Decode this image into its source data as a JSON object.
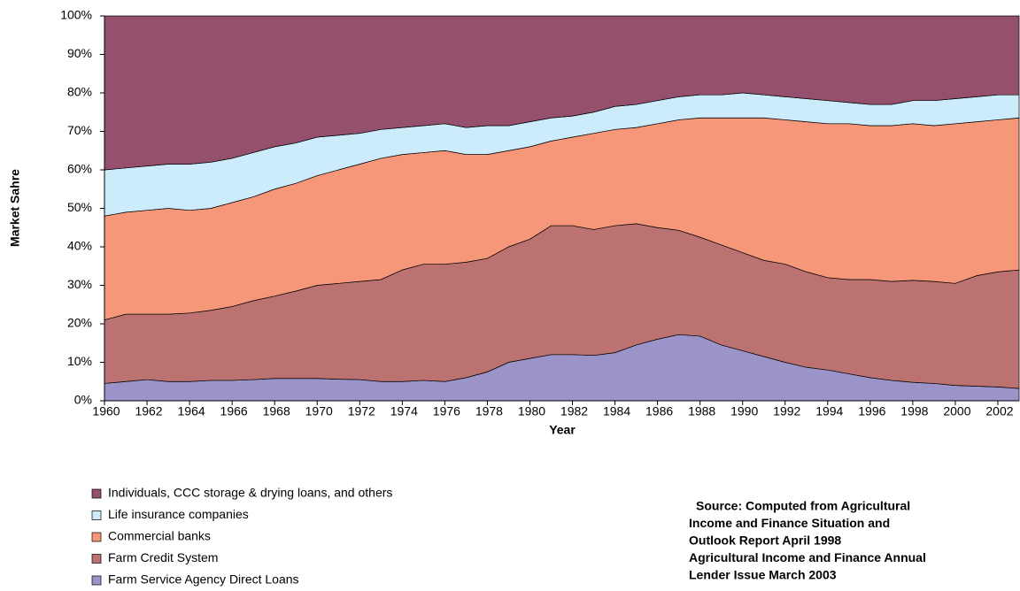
{
  "chart_data": {
    "type": "stacked_area",
    "x_label": "Year",
    "y_label": "Market Sahre",
    "x": [
      1960,
      1961,
      1962,
      1963,
      1964,
      1965,
      1966,
      1967,
      1968,
      1969,
      1970,
      1971,
      1972,
      1973,
      1974,
      1975,
      1976,
      1977,
      1978,
      1979,
      1980,
      1981,
      1982,
      1983,
      1984,
      1985,
      1986,
      1987,
      1988,
      1989,
      1990,
      1991,
      1992,
      1993,
      1994,
      1995,
      1996,
      1997,
      1998,
      1999,
      2000,
      2001,
      2002,
      2003
    ],
    "xlim": [
      1960,
      2003
    ],
    "xticks": [
      1960,
      1962,
      1964,
      1966,
      1968,
      1970,
      1972,
      1974,
      1976,
      1978,
      1980,
      1982,
      1984,
      1986,
      1988,
      1990,
      1992,
      1994,
      1996,
      1998,
      2000,
      2002
    ],
    "ylim": [
      0,
      100
    ],
    "yticks": [
      {
        "value": 0,
        "label": "0%"
      },
      {
        "value": 10,
        "label": "10%"
      },
      {
        "value": 20,
        "label": "20%"
      },
      {
        "value": 30,
        "label": "30%"
      },
      {
        "value": 40,
        "label": "40%"
      },
      {
        "value": 50,
        "label": "50%"
      },
      {
        "value": 60,
        "label": "60%"
      },
      {
        "value": 70,
        "label": "70%"
      },
      {
        "value": 80,
        "label": "80%"
      },
      {
        "value": 90,
        "label": "90%"
      },
      {
        "value": 100,
        "label": "100%"
      }
    ],
    "grid": false,
    "legend": "bottom-left",
    "series": [
      {
        "name": "Individuals, CCC storage & drying loans, and others",
        "color": "#94506c",
        "values": [
          40,
          39.5,
          39,
          38.5,
          38.5,
          38,
          37,
          35.5,
          34,
          33,
          31.5,
          31,
          30.5,
          29.5,
          29,
          28.5,
          28,
          29,
          28.5,
          28.5,
          27.5,
          26.5,
          26,
          25,
          23.5,
          23,
          22,
          21,
          20.5,
          20.5,
          20,
          20.5,
          21,
          21.5,
          22,
          22.5,
          23,
          23,
          22,
          22,
          21.5,
          21,
          20.5,
          20.5
        ]
      },
      {
        "name": "Life insurance companies",
        "color": "#ccecfc",
        "values": [
          12,
          11.5,
          11.5,
          11.5,
          12,
          12,
          11.5,
          11.5,
          11,
          10.5,
          10,
          9,
          8,
          7.5,
          7,
          7,
          7,
          7,
          7.5,
          6.5,
          6.5,
          6,
          5.5,
          5.5,
          6,
          6,
          6,
          6,
          6,
          6,
          6.5,
          6,
          6,
          6,
          6,
          5.5,
          5.5,
          5.5,
          6,
          6.5,
          6.5,
          6.5,
          6.5,
          6
        ]
      },
      {
        "name": "Commercial banks",
        "color": "#f6977a",
        "values": [
          27,
          26.5,
          27,
          27.5,
          26.7,
          26.5,
          27,
          27,
          27.8,
          28,
          28.5,
          29.5,
          30.5,
          31.5,
          30,
          29,
          29.5,
          28,
          27,
          25,
          24,
          22,
          23,
          25,
          25,
          25,
          27,
          28.7,
          31,
          33,
          35,
          37,
          37.5,
          39,
          40,
          40.5,
          40,
          40.5,
          40.7,
          40.5,
          41.5,
          40,
          39.5,
          39.5
        ]
      },
      {
        "name": "Farm Credit System",
        "color": "#bd7272",
        "values": [
          16.5,
          17.5,
          17,
          17.5,
          17.8,
          18.2,
          19.2,
          20.5,
          21.4,
          22.7,
          24.2,
          24.9,
          25.5,
          26.5,
          29,
          30.2,
          30.5,
          30,
          29.5,
          30,
          31,
          33.5,
          33.5,
          32.7,
          33,
          31.5,
          29,
          27.1,
          25.7,
          26,
          25.5,
          25,
          25.5,
          24.8,
          24,
          24.5,
          25.5,
          25.7,
          26.5,
          26.5,
          26.5,
          28.7,
          29.9,
          30.8
        ]
      },
      {
        "name": "Farm Service Agency Direct Loans",
        "color": "#9b94c8",
        "values": [
          4.5,
          5,
          5.5,
          5,
          5,
          5.3,
          5.3,
          5.5,
          5.8,
          5.8,
          5.8,
          5.6,
          5.5,
          5,
          5,
          5.3,
          5,
          6,
          7.5,
          10,
          11,
          12,
          12,
          11.8,
          12.5,
          14.5,
          16,
          17.2,
          16.8,
          14.5,
          13,
          11.5,
          10,
          8.7,
          8,
          7,
          6,
          5.3,
          4.8,
          4.5,
          4,
          3.8,
          3.6,
          3.2
        ]
      }
    ],
    "source": [
      "Source:  Computed from Agricultural",
      "Income and Finance Situation and",
      "Outlook Report April 1998",
      "Agricultural Income and Finance Annual",
      "Lender Issue March 2003"
    ]
  }
}
